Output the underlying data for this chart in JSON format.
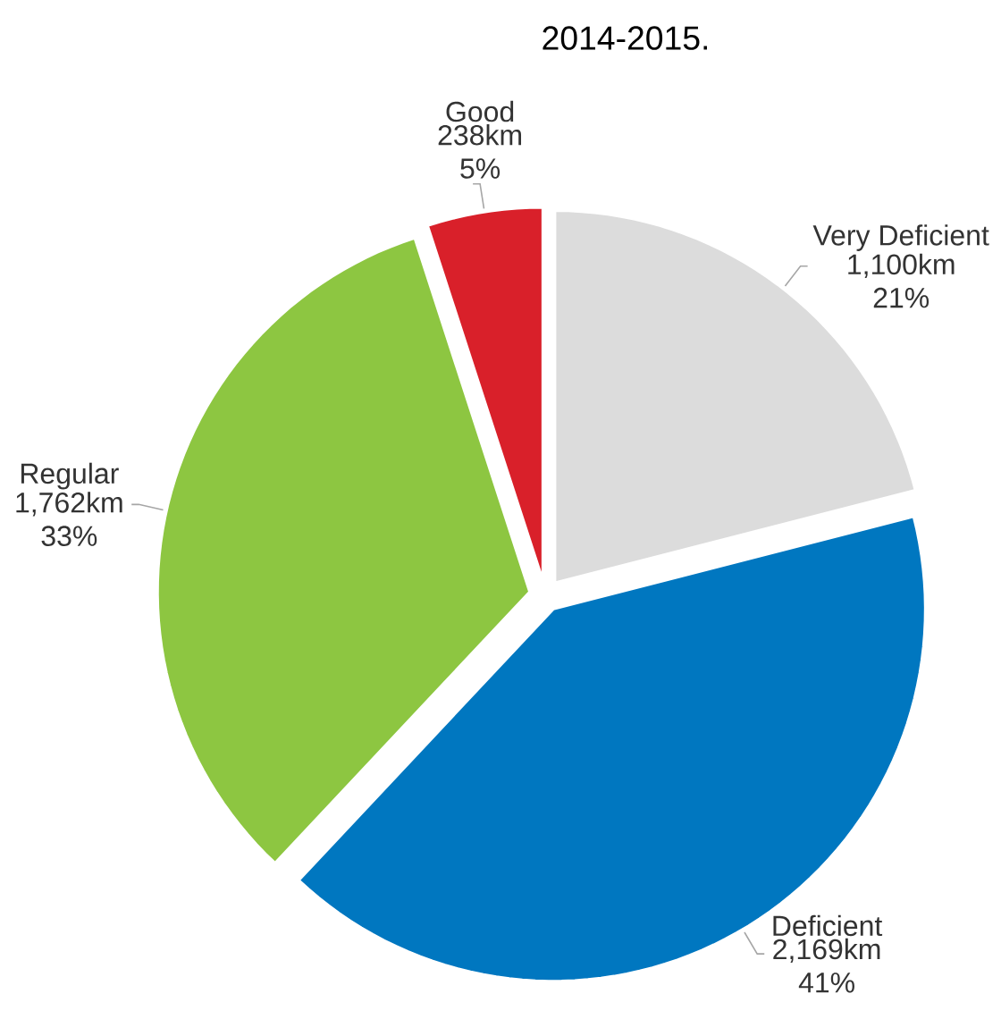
{
  "chart_data": {
    "type": "pie",
    "title": "2014-2015.",
    "categories": [
      "Very Deficient",
      "Deficient",
      "Regular",
      "Good"
    ],
    "values": [
      21,
      41,
      33,
      5
    ],
    "value_labels": [
      "1,100km 21%",
      "2,169km 41%",
      "1,762km 33%",
      "238km 5%"
    ],
    "colors": [
      "#dcdcdc",
      "#0077c0",
      "#8dc641",
      "#d9202a"
    ]
  }
}
